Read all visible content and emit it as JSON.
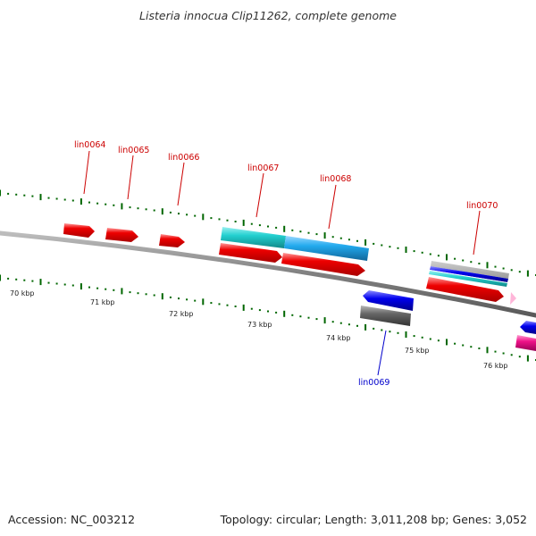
{
  "title": "Listeria innocua Clip11262, complete genome",
  "footer": {
    "accession": "Accession: NC_003212",
    "summary": "Topology: circular; Length: 3,011,208 bp; Genes: 3,052"
  },
  "colors": {
    "forward_label": "#cc0000",
    "reverse_label": "#0000cc",
    "backbone": "#808080",
    "tick": "#006600",
    "gene_red": "#ee0000",
    "gene_cyan": "#22d0d0",
    "gene_sky": "#22aaee",
    "gene_blue": "#0000ee",
    "gene_gray": "#666666",
    "gene_magenta": "#ee1188",
    "gene_pink": "#ffb6d9"
  },
  "scale_labels": [
    "70 kbp",
    "71 kbp",
    "72 kbp",
    "73 kbp",
    "74 kbp",
    "75 kbp",
    "76 kbp"
  ],
  "gene_labels": {
    "lin0064": "lin0064",
    "lin0065": "lin0065",
    "lin0066": "lin0066",
    "lin0067": "lin0067",
    "lin0068": "lin0068",
    "lin0069": "lin0069",
    "lin0070": "lin0070"
  }
}
